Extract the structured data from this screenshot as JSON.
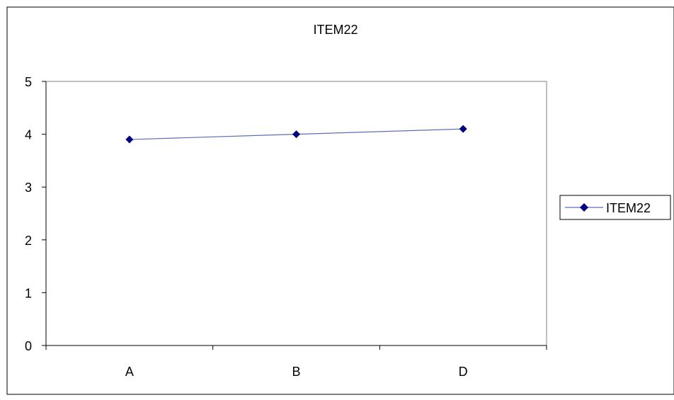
{
  "chart_data": {
    "type": "line",
    "title": "ITEM22",
    "categories": [
      "A",
      "B",
      "D"
    ],
    "series": [
      {
        "name": "ITEM22",
        "values": [
          3.9,
          4.0,
          4.1
        ]
      }
    ],
    "ylim": [
      0,
      5
    ],
    "yticks": [
      "0",
      "1",
      "2",
      "3",
      "4",
      "5"
    ],
    "grid": false,
    "legend": "right",
    "colors": {
      "series": "#000080",
      "line": "#5B6FB5"
    },
    "marker": "diamond-icon"
  }
}
